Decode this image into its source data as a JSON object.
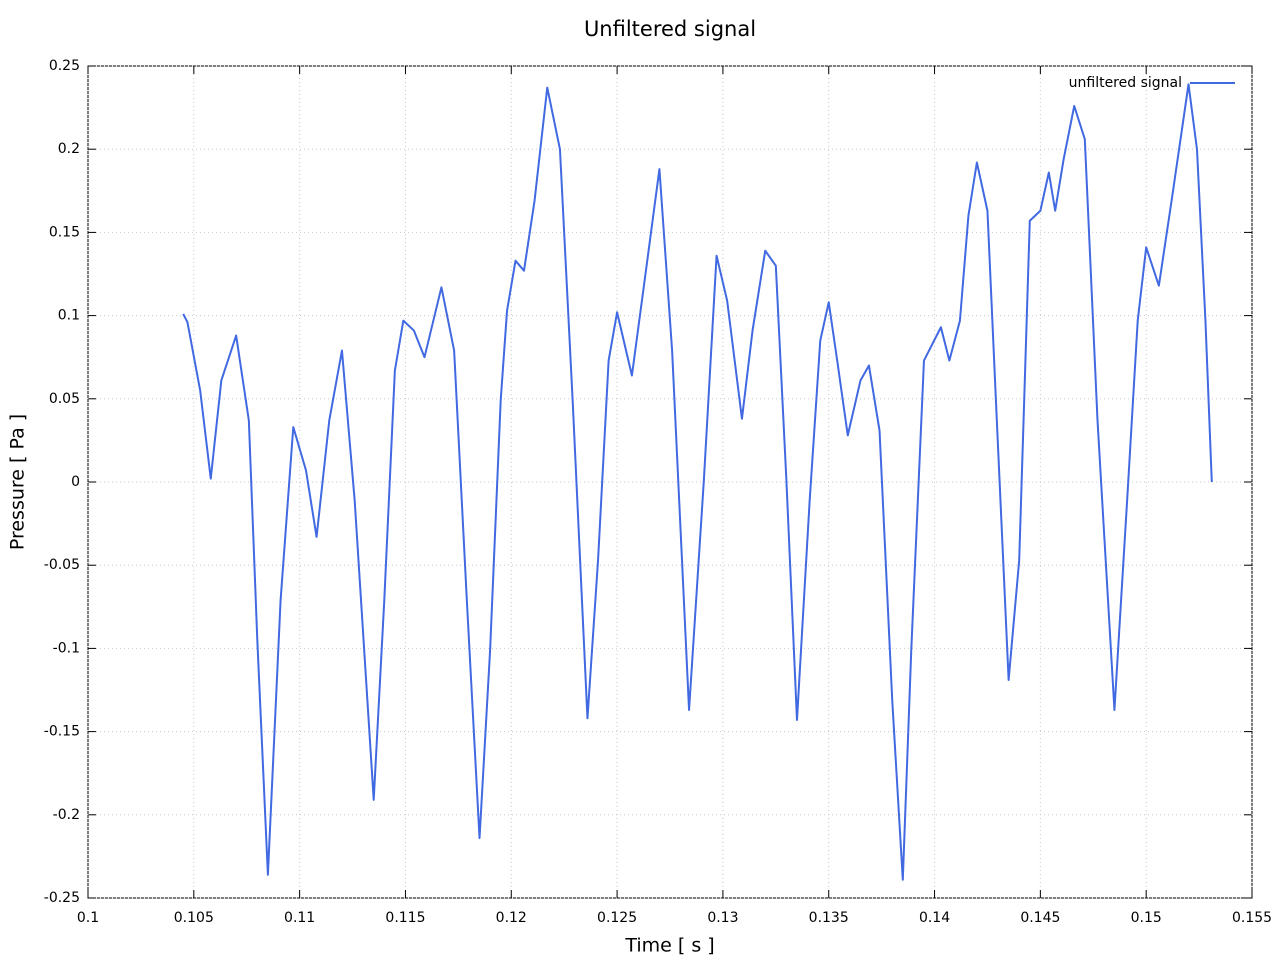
{
  "chart_data": {
    "type": "line",
    "title": "Unfiltered signal",
    "x_label": "Time [ s ]",
    "y_label": "Pressure [ Pa ]",
    "xlim": [
      0.1,
      0.155
    ],
    "xticks": [
      0.1,
      0.105,
      0.11,
      0.115,
      0.12,
      0.125,
      0.13,
      0.135,
      0.14,
      0.145,
      0.15,
      0.155
    ],
    "ylim": [
      -0.25,
      0.25
    ],
    "yticks": [
      -0.25,
      -0.2,
      -0.15,
      -0.1,
      -0.05,
      0,
      0.05,
      0.1,
      0.15,
      0.2,
      0.25
    ],
    "grid": true,
    "legend": "top-right",
    "series": [
      {
        "name": "unfiltered signal",
        "color": "#4169e1",
        "x": [
          0.1045,
          0.1047,
          0.1053,
          0.1058,
          0.1063,
          0.107,
          0.1076,
          0.108,
          0.1085,
          0.1091,
          0.1097,
          0.1103,
          0.1108,
          0.1114,
          0.112,
          0.1126,
          0.1135,
          0.114,
          0.1145,
          0.1149,
          0.1154,
          0.1159,
          0.1167,
          0.1173,
          0.1179,
          0.1185,
          0.119,
          0.1195,
          0.1198,
          0.1202,
          0.1206,
          0.1211,
          0.1217,
          0.1223,
          0.1229,
          0.1236,
          0.1241,
          0.1246,
          0.125,
          0.1257,
          0.1263,
          0.127,
          0.1276,
          0.1284,
          0.1291,
          0.1297,
          0.1302,
          0.1309,
          0.1314,
          0.132,
          0.1325,
          0.133,
          0.1335,
          0.1341,
          0.1346,
          0.135,
          0.1354,
          0.1359,
          0.1365,
          0.1369,
          0.1374,
          0.138,
          0.1385,
          0.1389,
          0.1395,
          0.1403,
          0.1407,
          0.1412,
          0.1416,
          0.142,
          0.1425,
          0.1429,
          0.1435,
          0.144,
          0.1445,
          0.145,
          0.1454,
          0.1457,
          0.1461,
          0.1466,
          0.1471,
          0.1477,
          0.1485,
          0.1491,
          0.1496,
          0.15,
          0.1506,
          0.1512,
          0.152,
          0.1524,
          0.1528,
          0.1531
        ],
        "values": [
          0.101,
          0.096,
          0.055,
          0.002,
          0.061,
          0.088,
          0.037,
          -0.095,
          -0.236,
          -0.071,
          0.033,
          0.007,
          -0.033,
          0.037,
          0.079,
          -0.011,
          -0.191,
          -0.071,
          0.067,
          0.097,
          0.091,
          0.075,
          0.117,
          0.079,
          -0.071,
          -0.214,
          -0.101,
          0.049,
          0.103,
          0.133,
          0.127,
          0.169,
          0.237,
          0.2,
          0.049,
          -0.142,
          -0.047,
          0.073,
          0.102,
          0.064,
          0.121,
          0.188,
          0.079,
          -0.137,
          0.001,
          0.136,
          0.109,
          0.038,
          0.091,
          0.139,
          0.13,
          0.001,
          -0.143,
          -0.011,
          0.085,
          0.108,
          0.073,
          0.028,
          0.061,
          0.07,
          0.031,
          -0.131,
          -0.239,
          -0.101,
          0.073,
          0.093,
          0.073,
          0.097,
          0.16,
          0.192,
          0.163,
          0.049,
          -0.119,
          -0.047,
          0.157,
          0.163,
          0.186,
          0.163,
          0.194,
          0.226,
          0.206,
          0.037,
          -0.137,
          -0.011,
          0.097,
          0.141,
          0.118,
          0.169,
          0.239,
          0.2,
          0.097,
          0
        ]
      }
    ]
  }
}
